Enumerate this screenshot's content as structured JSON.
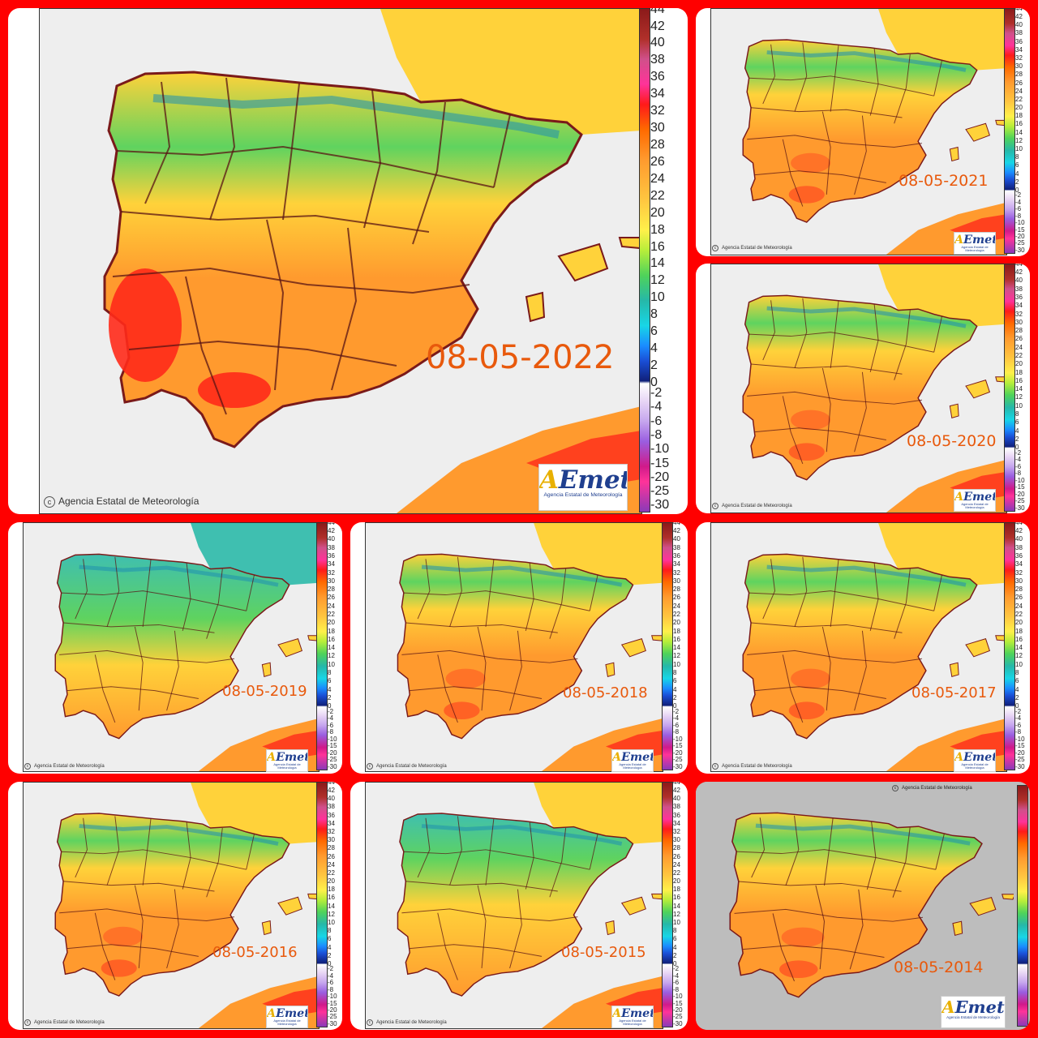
{
  "credit_text": "Agencia Estatal de Meteorología",
  "logo": {
    "brand": "AEmet",
    "subtitle": "Agencia Estatal de Meteorología"
  },
  "legend_positive": [
    "44",
    "42",
    "40",
    "38",
    "36",
    "34",
    "32",
    "30",
    "28",
    "26",
    "24",
    "22",
    "20",
    "18",
    "16",
    "14",
    "12",
    "10",
    "8",
    "6",
    "4",
    "2",
    "0"
  ],
  "legend_negative": [
    "-2",
    "-4",
    "-6",
    "-8",
    "-10",
    "-15",
    "-20",
    "-25",
    "-30"
  ],
  "panels": [
    {
      "date": "08-05-2022",
      "palette": "hot"
    },
    {
      "date": "08-05-2021",
      "palette": "warm"
    },
    {
      "date": "08-05-2020",
      "palette": "warm"
    },
    {
      "date": "08-05-2019",
      "palette": "cool"
    },
    {
      "date": "08-05-2018",
      "palette": "warm"
    },
    {
      "date": "08-05-2017",
      "palette": "warm"
    },
    {
      "date": "08-05-2016",
      "palette": "warm"
    },
    {
      "date": "08-05-2015",
      "palette": "mild"
    },
    {
      "date": "08-05-2014",
      "palette": "warm"
    }
  ],
  "colors": {
    "frame": "#ff0000",
    "date_text": "#e8590c",
    "sea": "#eeeeee",
    "hot": "#ff2a1a",
    "orange": "#ff9a2e",
    "yellow": "#ffd23a",
    "green": "#5fd35f",
    "teal": "#3fbfb0"
  }
}
